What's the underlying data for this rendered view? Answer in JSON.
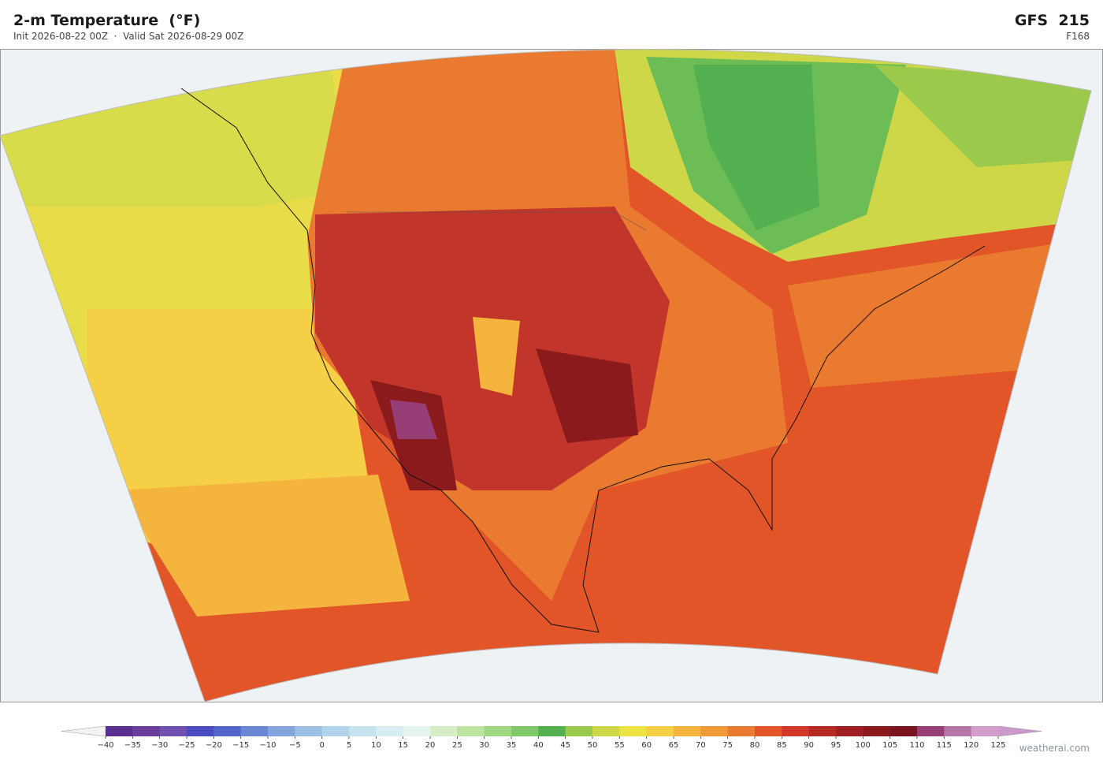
{
  "header": {
    "title": "2-m Temperature  (°F)",
    "subtitle": "Init 2026-08-22 00Z  ·  Valid Sat 2026-08-29 00Z",
    "model": "GFS  215",
    "forecast_hour": "F168"
  },
  "colorbar": {
    "range": [
      -40,
      125
    ],
    "ticks": [
      {
        "value": -40,
        "label": "−40"
      },
      {
        "value": -35,
        "label": "−35"
      },
      {
        "value": -30,
        "label": "−30"
      },
      {
        "value": -25,
        "label": "−25"
      },
      {
        "value": -20,
        "label": "−20"
      },
      {
        "value": -15,
        "label": "−15"
      },
      {
        "value": -10,
        "label": "−10"
      },
      {
        "value": -5,
        "label": "−5"
      },
      0,
      5,
      10,
      15,
      20,
      25,
      30,
      35,
      40,
      45,
      50,
      55,
      60,
      65,
      70,
      75,
      80,
      85,
      90,
      95,
      100,
      105,
      110,
      115,
      120,
      125
    ],
    "colors": [
      "#5b2f91",
      "#6a3d9a",
      "#7050b0",
      "#4a4bbf",
      "#5465cc",
      "#6a86d4",
      "#85a6dc",
      "#9cc0e3",
      "#b1d4ea",
      "#c5e2ef",
      "#d8eef3",
      "#e6f4ef",
      "#d6edc6",
      "#bde4a0",
      "#a1d884",
      "#80c96a",
      "#52b050",
      "#9bc94b",
      "#cdd748",
      "#ece445",
      "#f5cf45",
      "#f4b43e",
      "#f09a37",
      "#ea7a30",
      "#e25528",
      "#d0392a",
      "#b62a24",
      "#a01e22",
      "#8b1a1c",
      "#7a1520",
      "#973e76",
      "#b875a8",
      "#d39dcb"
    ],
    "under_color": "#f2f2f2",
    "over_color": "#cc99cc"
  },
  "footer": {
    "watermark": "weatherai.com"
  }
}
